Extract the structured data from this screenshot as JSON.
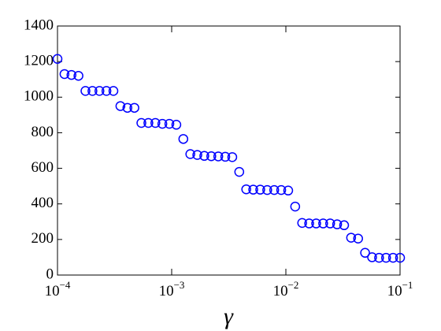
{
  "chart_data": {
    "type": "scatter",
    "x_label": "γ",
    "x_scale": "log",
    "x": [
      0.0001,
      0.00011514,
      0.00013257,
      0.00015264,
      0.00017575,
      0.00020236,
      0.000233,
      0.00026827,
      0.00030888,
      0.00035565,
      0.00040949,
      0.00047149,
      0.00054287,
      0.00062506,
      0.00071969,
      0.00082864,
      0.0009541,
      0.0010985,
      0.0012649,
      0.0014563,
      0.0016768,
      0.0019307,
      0.002223,
      0.0025595,
      0.0029471,
      0.0033932,
      0.0039069,
      0.0044984,
      0.0051795,
      0.0059636,
      0.0068665,
      0.007906,
      0.009103,
      0.010481,
      0.012068,
      0.013895,
      0.015999,
      0.018421,
      0.02121,
      0.024421,
      0.028118,
      0.032375,
      0.037276,
      0.042919,
      0.049417,
      0.056899,
      0.065513,
      0.075431,
      0.086851,
      0.1
    ],
    "series": [
      {
        "color": "#0000ff",
        "values": [
          1215,
          1130,
          1125,
          1120,
          1035,
          1035,
          1035,
          1035,
          1035,
          950,
          940,
          940,
          855,
          855,
          855,
          850,
          850,
          845,
          765,
          680,
          675,
          670,
          668,
          667,
          665,
          663,
          580,
          482,
          480,
          480,
          478,
          478,
          478,
          475,
          385,
          293,
          290,
          290,
          290,
          290,
          285,
          280,
          210,
          205,
          125,
          100,
          97,
          97,
          97,
          97
        ]
      }
    ],
    "xlim": [
      0.0001,
      0.1
    ],
    "xticks": [
      {
        "value": 0.0001,
        "label": "10",
        "exponent": "−4"
      },
      {
        "value": 0.001,
        "label": "10",
        "exponent": "−3"
      },
      {
        "value": 0.01,
        "label": "10",
        "exponent": "−2"
      },
      {
        "value": 0.1,
        "label": "10",
        "exponent": "−1"
      }
    ],
    "ylim": [
      0,
      1400
    ],
    "yticks": [
      0,
      200,
      400,
      600,
      800,
      1000,
      1200,
      1400
    ],
    "grid": false
  }
}
